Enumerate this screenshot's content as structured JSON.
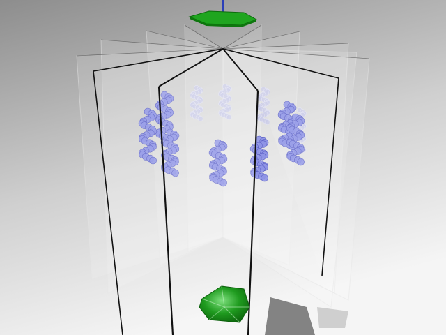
{
  "scene": {
    "background_top": "#8f8f8f",
    "background_bottom": "#f4f4f4",
    "panel_count": 12,
    "helix_color": "#8e93e6",
    "helix_color_faint": "#c9cbe8",
    "cap_color": "#1fa51f",
    "cap_dark": "#0b6d0b",
    "axis_color": "#2b3fb8",
    "edge_color": "#111111",
    "shadow_color": "#5c5c5c"
  },
  "helices": [
    {
      "id": "h1",
      "depth": "front"
    },
    {
      "id": "h2",
      "depth": "front"
    },
    {
      "id": "h3",
      "depth": "front"
    },
    {
      "id": "h4",
      "depth": "front"
    },
    {
      "id": "h5",
      "depth": "front"
    },
    {
      "id": "h6",
      "depth": "mid"
    },
    {
      "id": "h7",
      "depth": "mid"
    },
    {
      "id": "h8",
      "depth": "back"
    },
    {
      "id": "h9",
      "depth": "back"
    },
    {
      "id": "h10",
      "depth": "back"
    },
    {
      "id": "h11",
      "depth": "back"
    }
  ]
}
